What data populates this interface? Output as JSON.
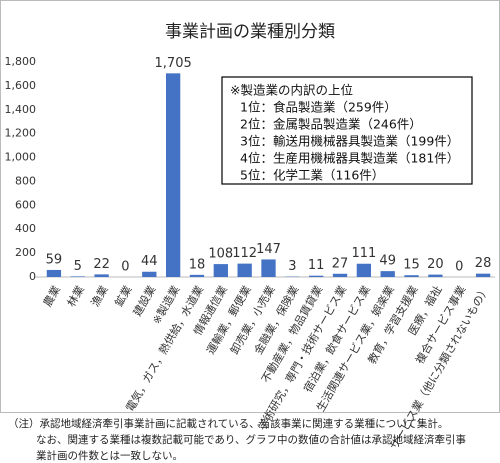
{
  "chart_data": {
    "type": "bar",
    "title": "事業計画の業種別分類",
    "categories": [
      "農業",
      "林業",
      "漁業",
      "鉱業",
      "建設業",
      "※製造業",
      "電気，ガス，熱供給，水道業",
      "情報通信業",
      "運輸業，郵便業",
      "卸売業，小売業",
      "金融業，保険業",
      "不動産業，物品賃貸業",
      "学術研究，専門・技術サービス業",
      "宿泊業，飲食サービス業",
      "生活関連サービス業，娯楽業",
      "教育，学習支援業",
      "医療，福祉",
      "複合サービス事業",
      "サービス業（他に分類されないもの）"
    ],
    "values": [
      59,
      5,
      22,
      0,
      44,
      1705,
      18,
      108,
      112,
      147,
      3,
      11,
      27,
      111,
      49,
      15,
      20,
      0,
      28
    ],
    "value_labels": [
      "59",
      "5",
      "22",
      "0",
      "44",
      "1,705",
      "18",
      "108",
      "112",
      "147",
      "3",
      "11",
      "27",
      "111",
      "49",
      "15",
      "20",
      "0",
      "28"
    ],
    "color": "#4472c4",
    "ylim": [
      0,
      1800
    ],
    "yticks": [
      0,
      200,
      400,
      600,
      800,
      {
        "value": 1000,
        "label": "1,000"
      },
      {
        "value": 1200,
        "label": "1,200"
      },
      {
        "value": 1400,
        "label": "1,400"
      },
      {
        "value": 1600,
        "label": "1,600"
      },
      {
        "value": 1800,
        "label": "1,800"
      }
    ],
    "grid": false,
    "annotation": [
      "※製造業の内訳の上位",
      "1位：食品製造業（259件）",
      "2位：金属製品製造業（246件）",
      "3位：輸送用機械器具製造業（199件）",
      "4位：生産用機械器具製造業（181件）",
      "5位：化学工業（116件）"
    ],
    "note": [
      "（注）承認地域経済牽引事業計画に記載されている、当該事業に関連する業種について集計。",
      "なお、関連する業種は複数記載可能であり、グラフ中の数値の合計値は承認地域経済牽引事",
      "業計画の件数とは一致しない。"
    ]
  }
}
